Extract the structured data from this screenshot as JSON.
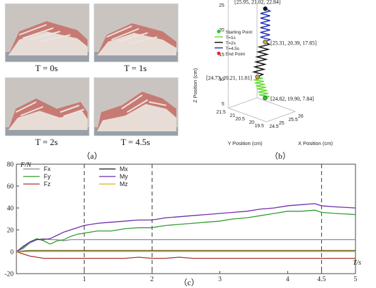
{
  "panel_a": {
    "photos": [
      {
        "label": "T = 0s"
      },
      {
        "label": "T = 1s"
      },
      {
        "label": "T = 2s"
      },
      {
        "label": "T = 4.5s"
      }
    ],
    "caption": "（a）"
  },
  "panel_b": {
    "caption": "（b）"
  },
  "panel_c": {
    "caption": "（c）"
  },
  "chart_data": [
    {
      "type": "line",
      "subtype": "3d-trajectory",
      "xlabel": "X Position (cm)",
      "ylabel": "Y Position (cm)",
      "zlabel": "Z Position (cm)",
      "x_ticks": [
        "24.5",
        "25",
        "25.5",
        "26"
      ],
      "y_ticks": [
        "19.5",
        "20",
        "20.5",
        "21",
        "21.5"
      ],
      "z_ticks": [
        "5",
        "10",
        "15",
        "20",
        "25"
      ],
      "legend": [
        {
          "label": "Starting Point",
          "color": "#22cc22",
          "marker": "dot"
        },
        {
          "label": "T=1s",
          "color": "#66dd33",
          "marker": "line"
        },
        {
          "label": "T=2s",
          "color": "#111111",
          "marker": "line"
        },
        {
          "label": "T=4.5s",
          "color": "#2233bb",
          "marker": "line"
        },
        {
          "label": "End Point",
          "color": "#ee2222",
          "marker": "dot"
        }
      ],
      "points": [
        {
          "label": "[24.82, 19.90, 7.84]",
          "x": 24.82,
          "y": 19.9,
          "z": 7.84
        },
        {
          "label": "[24.73, 20.21, 11.81]",
          "x": 24.73,
          "y": 20.21,
          "z": 11.81
        },
        {
          "label": "[25.31, 20.39, 17.85]",
          "x": 25.31,
          "y": 20.39,
          "z": 17.85
        },
        {
          "label": "[25.95, 21.02, 22.84]",
          "x": 25.95,
          "y": 21.02,
          "z": 22.84
        }
      ]
    },
    {
      "type": "line",
      "ylabel": "F/N",
      "xlabel": "T/s",
      "xlim": [
        0,
        5
      ],
      "ylim": [
        -20,
        80
      ],
      "y_ticks": [
        -20,
        0,
        20,
        40,
        60,
        80
      ],
      "x_ticks": [
        1,
        2,
        3,
        4,
        4.5,
        5
      ],
      "vlines": [
        1,
        2,
        4.5
      ],
      "grid": false,
      "legend_position": "top-left",
      "x": [
        0.0,
        0.1,
        0.2,
        0.3,
        0.4,
        0.5,
        0.6,
        0.7,
        0.8,
        0.9,
        1.0,
        1.2,
        1.4,
        1.6,
        1.8,
        2.0,
        2.2,
        2.4,
        2.6,
        2.8,
        3.0,
        3.2,
        3.4,
        3.6,
        3.8,
        4.0,
        4.2,
        4.4,
        4.5,
        4.7,
        5.0
      ],
      "series": [
        {
          "name": "Fx",
          "color": "#888888",
          "values": [
            0,
            3,
            8,
            11,
            12,
            11,
            11,
            10,
            11,
            11,
            11,
            11,
            11,
            11,
            11,
            11,
            11,
            11,
            11,
            11,
            11,
            11,
            11,
            11,
            11,
            11,
            11,
            11,
            11,
            11,
            11
          ]
        },
        {
          "name": "Fy",
          "color": "#2e9b2e",
          "values": [
            0,
            4,
            9,
            12,
            10,
            7,
            10,
            11,
            14,
            16,
            17,
            19,
            19,
            21,
            22,
            22,
            24,
            25,
            26,
            27,
            28,
            30,
            31,
            33,
            35,
            37,
            37,
            38,
            36,
            35,
            34
          ]
        },
        {
          "name": "Fz",
          "color": "#a83228",
          "values": [
            0,
            -2,
            -4,
            -5,
            -6,
            -6,
            -6,
            -6,
            -6,
            -6,
            -6,
            -6,
            -6,
            -6,
            -5,
            -6,
            -6,
            -5,
            -6,
            -6,
            -6,
            -6,
            -6,
            -6,
            -6,
            -6,
            -6,
            -6,
            -6,
            -6,
            -6
          ]
        },
        {
          "name": "Mx",
          "color": "#111111",
          "values": [
            0,
            0.5,
            1,
            1,
            1,
            1,
            1,
            1,
            1,
            1,
            1,
            1,
            1,
            1,
            1,
            1,
            1,
            1,
            1,
            1,
            1,
            1,
            1,
            1,
            1,
            1,
            1,
            1,
            1,
            1,
            1
          ]
        },
        {
          "name": "My",
          "color": "#6a2aa8",
          "values": [
            0,
            5,
            9,
            11,
            11,
            12,
            15,
            18,
            20,
            22,
            24,
            26,
            27,
            28,
            29,
            29,
            31,
            32,
            33,
            34,
            35,
            36,
            37,
            39,
            40,
            42,
            43,
            44,
            42,
            41,
            40
          ]
        },
        {
          "name": "Mz",
          "color": "#d6b400",
          "values": [
            0,
            0,
            0.5,
            0.5,
            0.5,
            0.5,
            0.5,
            0.5,
            0.5,
            0.5,
            0.5,
            0.5,
            0.5,
            0.5,
            0.5,
            0.5,
            0.5,
            0.5,
            0.5,
            0.5,
            0.5,
            0.5,
            0.5,
            0.5,
            0.5,
            0.5,
            0.5,
            0.5,
            0.5,
            0.5,
            0.5
          ]
        }
      ]
    }
  ]
}
